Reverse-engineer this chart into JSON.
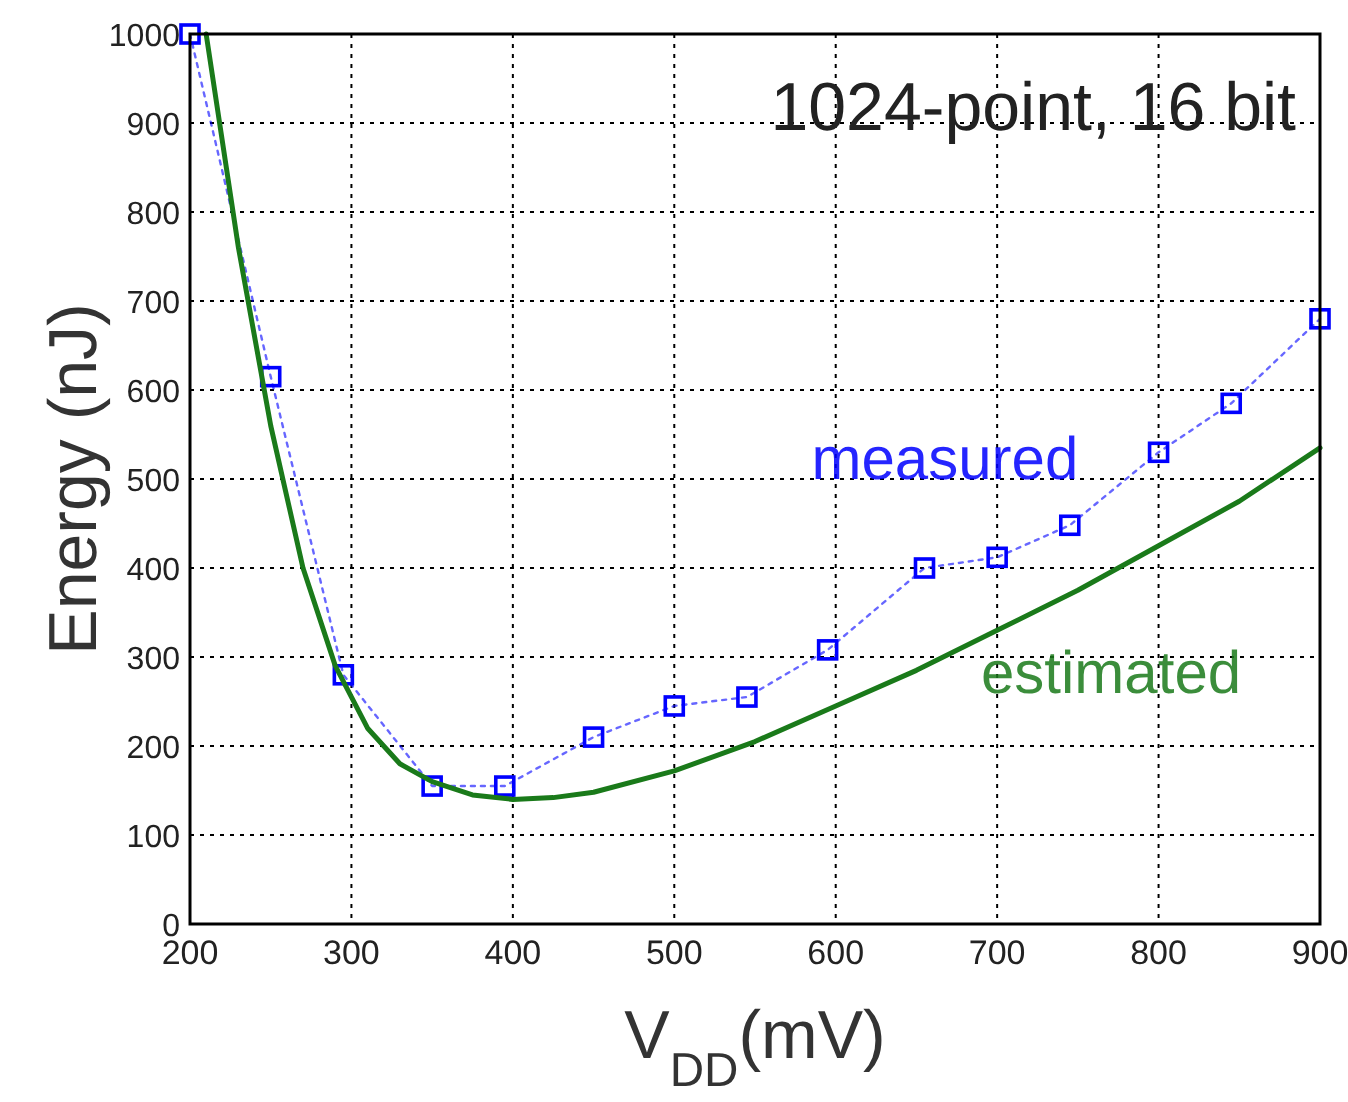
{
  "chart_data": {
    "type": "line",
    "xlabel": "V$_{DD}$(mV)",
    "ylabel": "Energy (nJ)",
    "annotations": [
      "1024-point, 16 bit"
    ],
    "xlim": [
      200,
      900
    ],
    "ylim": [
      0,
      1000
    ],
    "xticks": [
      200,
      300,
      400,
      500,
      600,
      700,
      800,
      900
    ],
    "yticks": [
      0,
      100,
      200,
      300,
      400,
      500,
      600,
      700,
      800,
      900,
      1000
    ],
    "grid": true,
    "series": [
      {
        "name": "measured",
        "color": "#0000ff",
        "marker": "square",
        "line_style": "dotted",
        "x": [
          200,
          250,
          295,
          350,
          395,
          450,
          500,
          545,
          595,
          655,
          700,
          745,
          800,
          845,
          900
        ],
        "values": [
          1000,
          615,
          280,
          155,
          155,
          210,
          245,
          255,
          308,
          400,
          412,
          448,
          530,
          585,
          680
        ]
      },
      {
        "name": "estimated",
        "color": "#1a7a1a",
        "marker": "none",
        "line_style": "solid",
        "x": [
          210,
          230,
          250,
          270,
          290,
          310,
          330,
          350,
          375,
          400,
          425,
          450,
          500,
          550,
          600,
          650,
          700,
          750,
          800,
          850,
          900
        ],
        "values": [
          1000,
          760,
          560,
          400,
          290,
          220,
          180,
          160,
          145,
          140,
          142,
          148,
          172,
          205,
          245,
          285,
          330,
          375,
          425,
          475,
          535
        ]
      }
    ]
  }
}
